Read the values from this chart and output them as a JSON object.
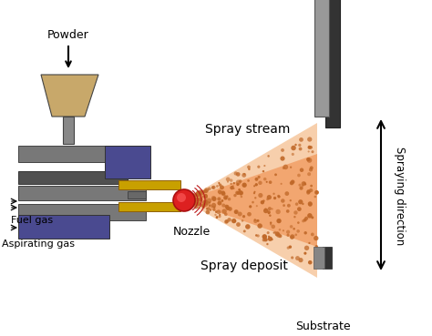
{
  "bg_color": "#ffffff",
  "hopper_color": "#c8a86a",
  "gun_body_color": "#787878",
  "gun_dark_color": "#505050",
  "gun_blue_color": "#4a4a90",
  "nozzle_yellow": "#c8a000",
  "flame_red": "#dd2020",
  "spray_orange": "#f09050",
  "spray_light": "#f5c090",
  "substrate_gray": "#999999",
  "substrate_dark": "#333333",
  "dot_color": "#c06828",
  "text_color": "#000000",
  "labels": {
    "powder": "Powder",
    "fuel_gas": "Fuel gas",
    "aspirating_gas": "Aspirating gas",
    "nozzle": "Nozzle",
    "spray_stream": "Spray stream",
    "spray_deposit": "Spray deposit",
    "spraying_direction": "Spraying direction",
    "substrate": "Substrate"
  }
}
